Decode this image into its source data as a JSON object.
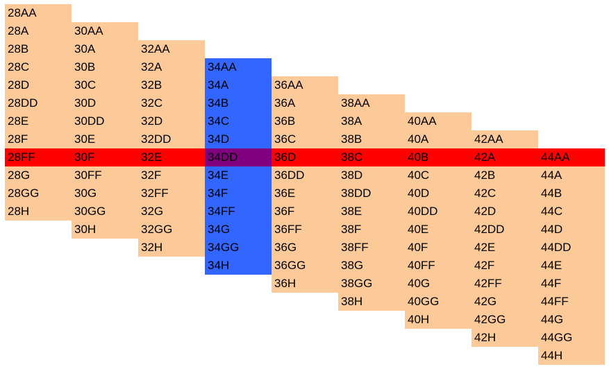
{
  "colors": {
    "cell": "#FCC999",
    "row_highlight": "#FF0000",
    "column_highlight": "#3366FF",
    "intersection": "#800080",
    "text": "#000000",
    "background": "#FFFFFF"
  },
  "highlight": {
    "row_index": 8,
    "column_index": 3
  },
  "columns": [
    {
      "band": 28,
      "start_row": 0,
      "sizes": [
        "28AA",
        "28A",
        "28B",
        "28C",
        "28D",
        "28DD",
        "28E",
        "28F",
        "28FF",
        "28G",
        "28GG",
        "28H"
      ]
    },
    {
      "band": 30,
      "start_row": 1,
      "sizes": [
        "30AA",
        "30A",
        "30B",
        "30C",
        "30D",
        "30DD",
        "30E",
        "30F",
        "30FF",
        "30G",
        "30GG",
        "30H"
      ]
    },
    {
      "band": 32,
      "start_row": 2,
      "sizes": [
        "32AA",
        "32A",
        "32B",
        "32C",
        "32D",
        "32DD",
        "32E",
        "32F",
        "32FF",
        "32G",
        "32GG",
        "32H"
      ]
    },
    {
      "band": 34,
      "start_row": 3,
      "sizes": [
        "34AA",
        "34A",
        "34B",
        "34C",
        "34D",
        "34DD",
        "34E",
        "34F",
        "34FF",
        "34G",
        "34GG",
        "34H"
      ]
    },
    {
      "band": 36,
      "start_row": 4,
      "sizes": [
        "36AA",
        "36A",
        "36B",
        "36C",
        "36D",
        "36DD",
        "36E",
        "36F",
        "36FF",
        "36G",
        "36GG",
        "36H"
      ]
    },
    {
      "band": 38,
      "start_row": 5,
      "sizes": [
        "38AA",
        "38A",
        "38B",
        "38C",
        "38D",
        "38DD",
        "38E",
        "38F",
        "38FF",
        "38G",
        "38GG",
        "38H"
      ]
    },
    {
      "band": 40,
      "start_row": 6,
      "sizes": [
        "40AA",
        "40A",
        "40B",
        "40C",
        "40D",
        "40DD",
        "40E",
        "40F",
        "40FF",
        "40G",
        "40GG",
        "40H"
      ]
    },
    {
      "band": 42,
      "start_row": 7,
      "sizes": [
        "42AA",
        "42A",
        "42B",
        "42C",
        "42D",
        "42DD",
        "42E",
        "42F",
        "42FF",
        "42G",
        "42GG",
        "42H"
      ]
    },
    {
      "band": 44,
      "start_row": 8,
      "sizes": [
        "44AA",
        "44A",
        "44B",
        "44C",
        "44D",
        "44DD",
        "44E",
        "44F",
        "44FF",
        "44G",
        "44GG",
        "44H"
      ]
    }
  ]
}
